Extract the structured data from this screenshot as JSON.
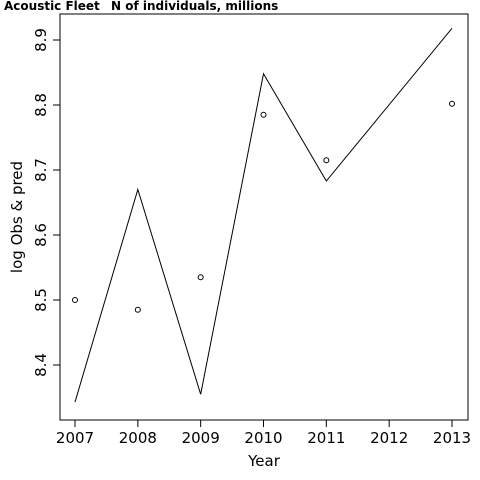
{
  "chart_data": {
    "type": "line",
    "title_left": "Acoustic Fleet",
    "title_right": "N of individuals, millions",
    "xlabel": "Year",
    "ylabel": "log Obs & pred",
    "x_ticks": [
      2007,
      2008,
      2009,
      2010,
      2011,
      2012,
      2013
    ],
    "y_ticks": [
      8.4,
      8.5,
      8.6,
      8.7,
      8.8,
      8.9
    ],
    "xlim": [
      2007,
      2013
    ],
    "ylim": [
      8.34,
      8.92
    ],
    "grid": false,
    "series": [
      {
        "kind": "line",
        "x": [
          2007,
          2008,
          2009,
          2010,
          2011,
          2013
        ],
        "values": [
          8.343,
          8.67,
          8.355,
          8.848,
          8.683,
          8.918
        ]
      },
      {
        "kind": "points",
        "x": [
          2007,
          2008,
          2009,
          2010,
          2011,
          2013
        ],
        "values": [
          8.5,
          8.485,
          8.535,
          8.785,
          8.715,
          8.802
        ]
      }
    ]
  }
}
